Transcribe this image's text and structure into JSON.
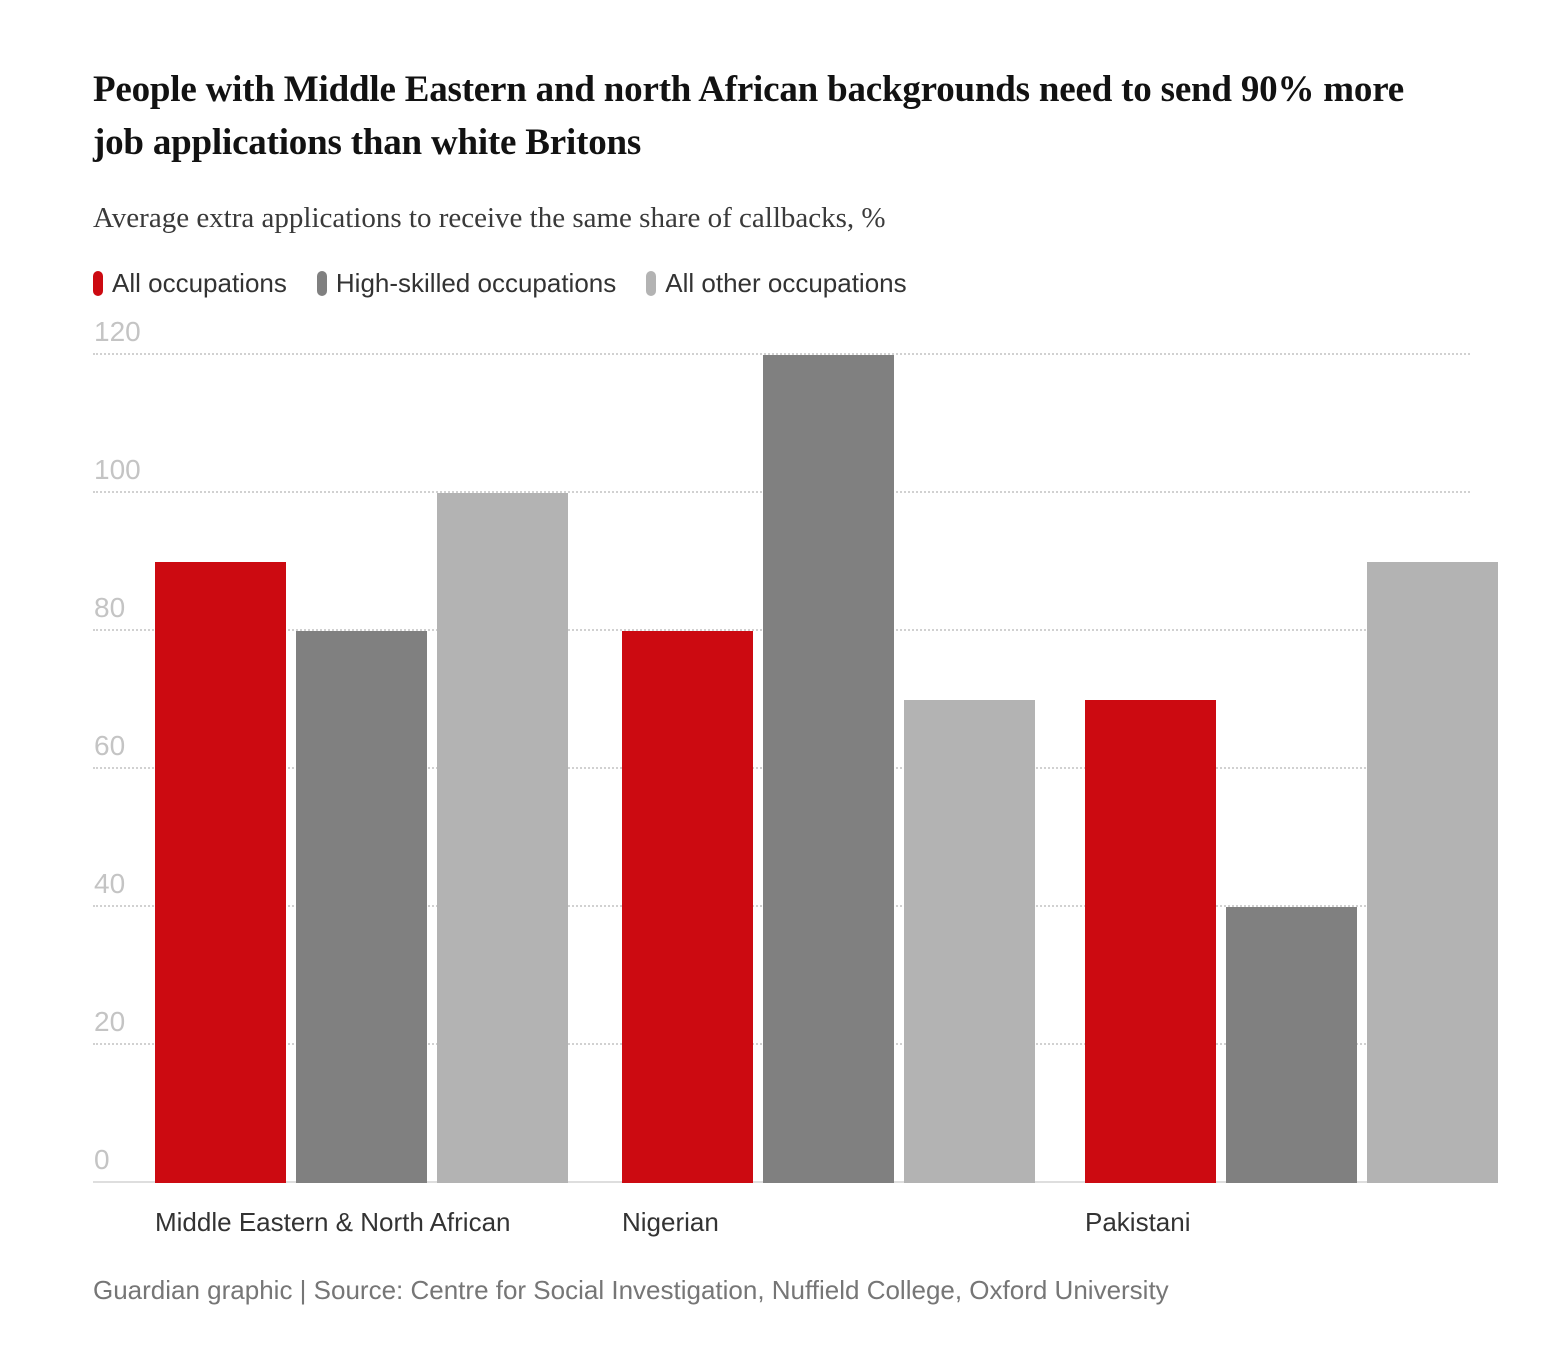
{
  "header": {
    "title": "People with Middle Eastern and north African backgrounds need to send 90% more job applications than white Britons",
    "subtitle": "Average extra applications to receive the same share of callbacks, %"
  },
  "footer": {
    "source": "Guardian graphic | Source: Centre for Social Investigation, Nuffield College, Oxford University"
  },
  "colors": {
    "accent_red": "#cc0a11",
    "dark_gray": "#808080",
    "light_gray": "#b3b3b3",
    "grid": "#d1d1d1",
    "tick_text": "#c4c4c4",
    "label_text": "#333333",
    "source_text": "#767676"
  },
  "chart_data": {
    "type": "bar",
    "title": "People with Middle Eastern and north African backgrounds need to send 90% more job applications than white Britons",
    "subtitle": "Average extra applications to receive the same share of callbacks, %",
    "categories": [
      "Middle Eastern & North African",
      "Nigerian",
      "Pakistani"
    ],
    "series": [
      {
        "name": "All occupations",
        "color": "#cc0a11",
        "values": [
          90,
          80,
          70
        ]
      },
      {
        "name": "High-skilled occupations",
        "color": "#808080",
        "values": [
          80,
          120,
          40
        ]
      },
      {
        "name": "All other occupations",
        "color": "#b3b3b3",
        "values": [
          100,
          70,
          90
        ]
      }
    ],
    "xlabel": "",
    "ylabel": "Average extra applications to receive the same share of callbacks, %",
    "ylim": [
      0,
      120
    ],
    "yticks": [
      0,
      20,
      40,
      60,
      80,
      100,
      120
    ],
    "grid": "horizontal-dotted",
    "legend_position": "top-left"
  }
}
